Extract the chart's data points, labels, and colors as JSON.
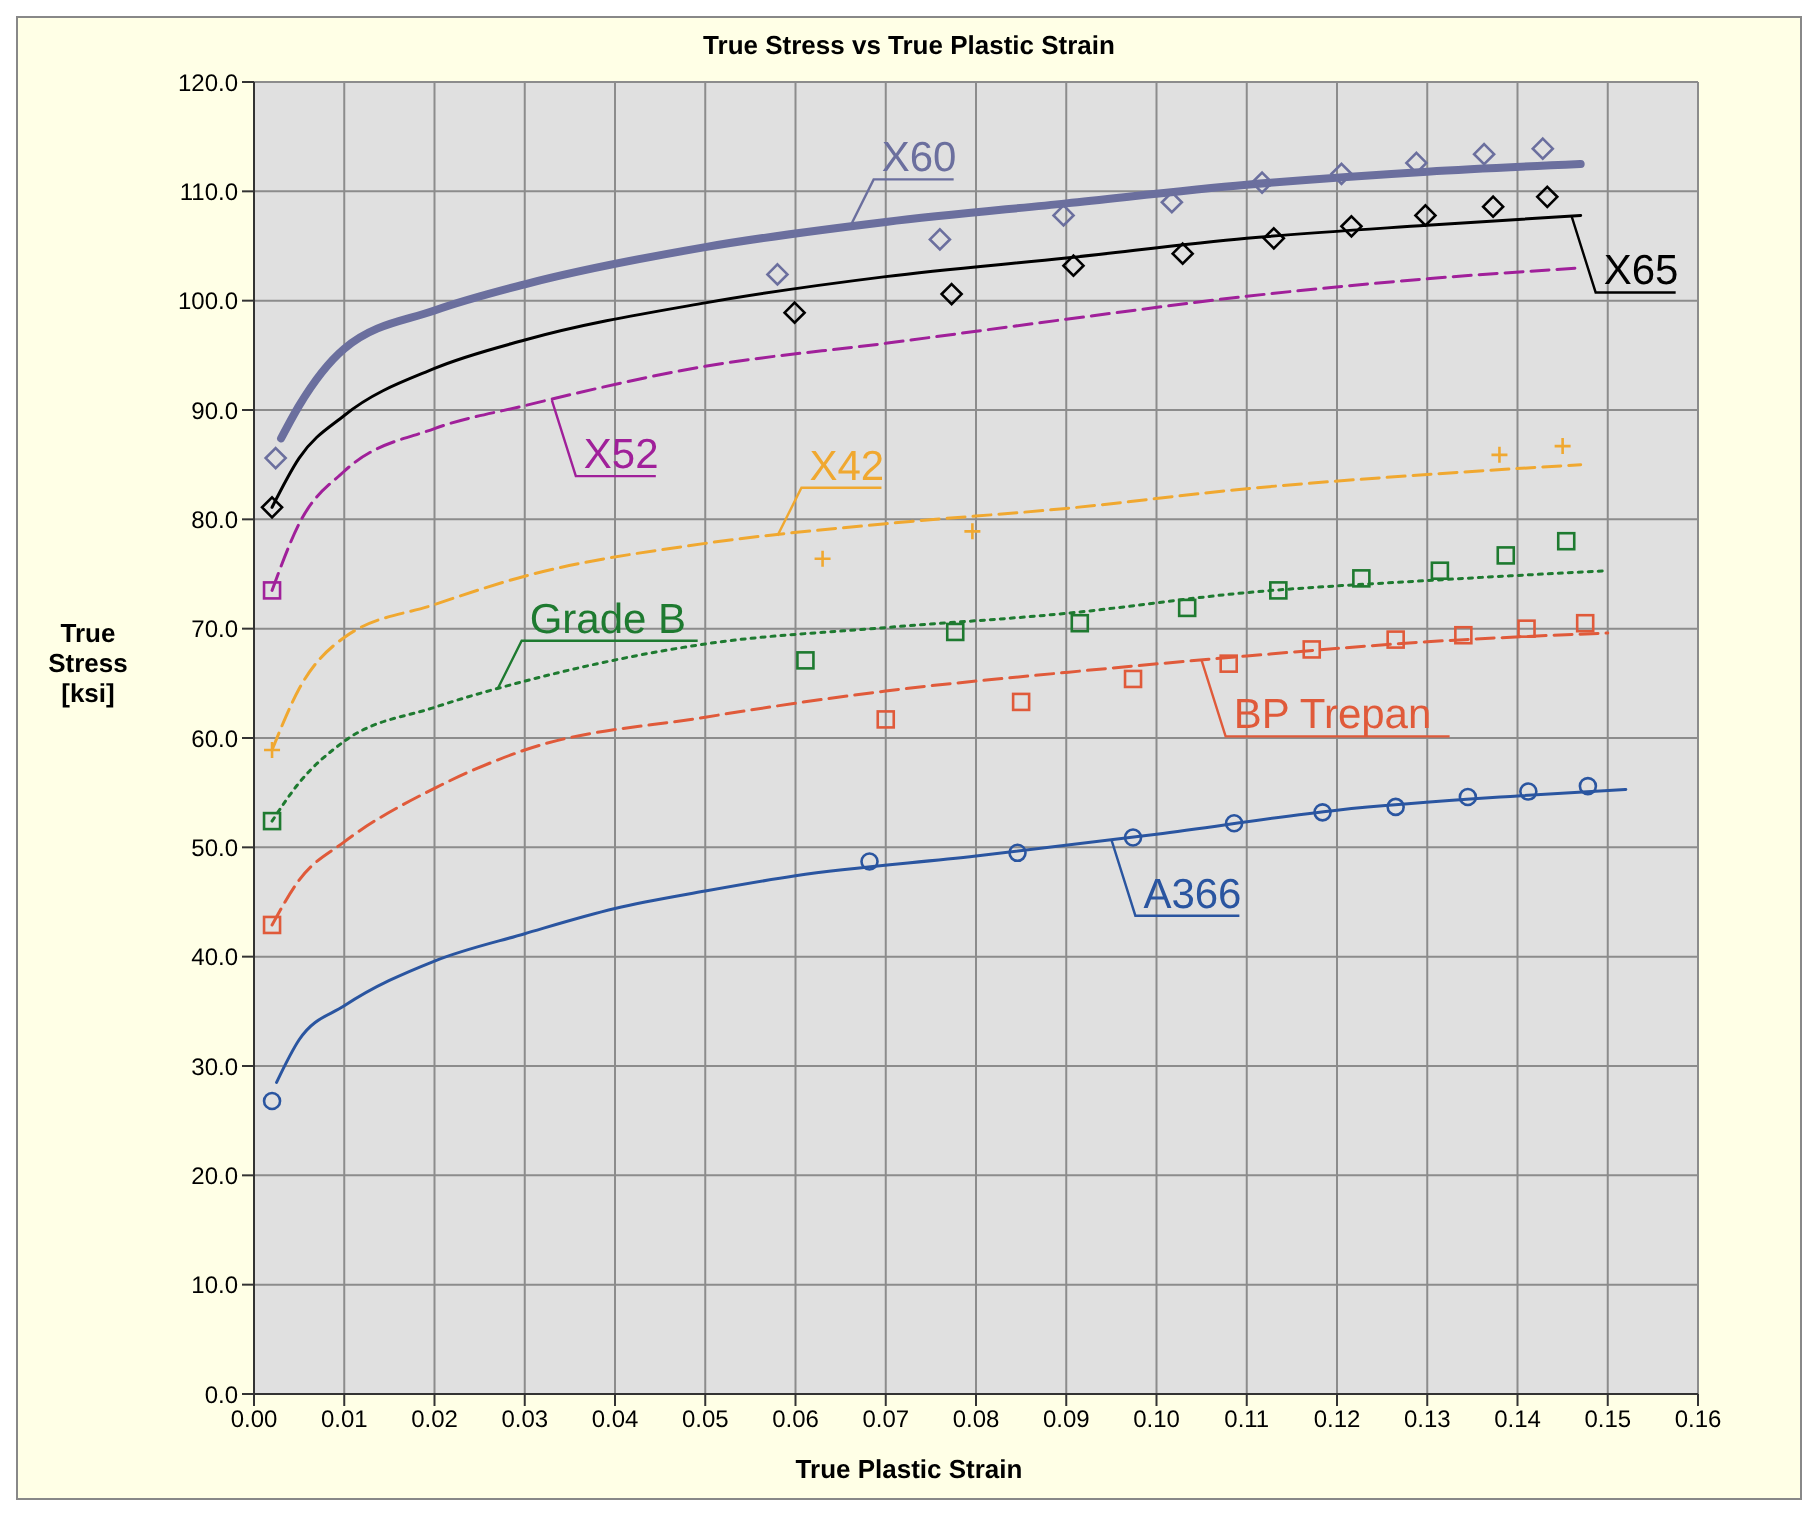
{
  "chart_data": {
    "type": "line",
    "title": "True Stress vs True Plastic Strain",
    "xlabel": "True Plastic Strain",
    "ylabel": "True Stress [ksi]",
    "xlim": [
      0,
      0.16
    ],
    "ylim": [
      0,
      120
    ],
    "xticks": [
      {
        "value": 0,
        "label": "0.00"
      },
      {
        "value": 0.01,
        "label": "0.01"
      },
      {
        "value": 0.02,
        "label": "0.02"
      },
      {
        "value": 0.03,
        "label": "0.03"
      },
      {
        "value": 0.04,
        "label": "0.04"
      },
      {
        "value": 0.05,
        "label": "0.05"
      },
      {
        "value": 0.06,
        "label": "0.06"
      },
      {
        "value": 0.07,
        "label": "0.07"
      },
      {
        "value": 0.08,
        "label": "0.08"
      },
      {
        "value": 0.09,
        "label": "0.09"
      },
      {
        "value": 0.1,
        "label": "0.10"
      },
      {
        "value": 0.11,
        "label": "0.11"
      },
      {
        "value": 0.12,
        "label": "0.12"
      },
      {
        "value": 0.13,
        "label": "0.13"
      },
      {
        "value": 0.14,
        "label": "0.14"
      },
      {
        "value": 0.15,
        "label": "0.15"
      },
      {
        "value": 0.16,
        "label": "0.16"
      }
    ],
    "yticks": [
      {
        "value": 0,
        "label": "0.0"
      },
      {
        "value": 10,
        "label": "10.0"
      },
      {
        "value": 20,
        "label": "20.0"
      },
      {
        "value": 30,
        "label": "30.0"
      },
      {
        "value": 40,
        "label": "40.0"
      },
      {
        "value": 50,
        "label": "50.0"
      },
      {
        "value": 60,
        "label": "60.0"
      },
      {
        "value": 70,
        "label": "70.0"
      },
      {
        "value": 80,
        "label": "80.0"
      },
      {
        "value": 90,
        "label": "90.0"
      },
      {
        "value": 100,
        "label": "100.0"
      },
      {
        "value": 110,
        "label": "110.0"
      },
      {
        "value": 120,
        "label": "120.0"
      }
    ],
    "grid": true,
    "series": [
      {
        "color": "#6b6f9e",
        "line_style": "solid",
        "marker": "none",
        "x": [
          0.003,
          0.005,
          0.01,
          0.02,
          0.03,
          0.05,
          0.07,
          0.09,
          0.11,
          0.13,
          0.147
        ],
        "values": [
          87.4,
          90.4,
          95.6,
          99.1,
          101.5,
          104.9,
          107.2,
          108.9,
          110.6,
          111.8,
          112.5
        ]
      },
      {
        "color": "#000000",
        "line_style": "solid",
        "marker": "none",
        "x": [
          0.002,
          0.005,
          0.01,
          0.02,
          0.03,
          0.05,
          0.07,
          0.09,
          0.11,
          0.13,
          0.147
        ],
        "values": [
          81.1,
          85.6,
          89.5,
          93.8,
          96.4,
          99.8,
          102.2,
          103.9,
          105.7,
          106.9,
          107.8
        ]
      },
      {
        "color": "#a0209a",
        "line_style": "dashed",
        "marker": "none",
        "x": [
          0.002,
          0.005,
          0.01,
          0.02,
          0.03,
          0.05,
          0.07,
          0.09,
          0.11,
          0.13,
          0.147
        ],
        "values": [
          73.5,
          79.6,
          84.4,
          88.3,
          90.4,
          94,
          96.1,
          98.3,
          100.4,
          102,
          103
        ]
      },
      {
        "color": "#f0a830",
        "line_style": "dashed",
        "marker": "none",
        "x": [
          0.002,
          0.005,
          0.01,
          0.02,
          0.03,
          0.05,
          0.07,
          0.09,
          0.11,
          0.13,
          0.147
        ],
        "values": [
          58.9,
          64.5,
          69.2,
          72.2,
          74.8,
          77.8,
          79.6,
          81,
          82.8,
          84.1,
          85
        ]
      },
      {
        "color": "#1e7a30",
        "line_style": "dotted",
        "marker": "none",
        "x": [
          0.002,
          0.005,
          0.01,
          0.02,
          0.03,
          0.05,
          0.07,
          0.09,
          0.11,
          0.13,
          0.15
        ],
        "values": [
          52.4,
          55.9,
          59.7,
          62.8,
          65.2,
          68.6,
          70.1,
          71.4,
          73.3,
          74.4,
          75.3
        ]
      },
      {
        "color": "#e05a3a",
        "line_style": "dashed",
        "marker": "none",
        "x": [
          0.002,
          0.005,
          0.01,
          0.02,
          0.03,
          0.05,
          0.07,
          0.09,
          0.11,
          0.13,
          0.15
        ],
        "values": [
          42.9,
          47,
          50.5,
          55.4,
          58.9,
          61.9,
          64.3,
          66,
          67.5,
          68.8,
          69.6
        ]
      },
      {
        "color": "#2a55a0",
        "line_style": "solid",
        "marker": "none",
        "x": [
          0.0025,
          0.005,
          0.01,
          0.02,
          0.03,
          0.04,
          0.05,
          0.06,
          0.08,
          0.1,
          0.12,
          0.14,
          0.152
        ],
        "values": [
          28.5,
          32.4,
          35.5,
          39.6,
          42.1,
          44.4,
          46,
          47.4,
          49.2,
          51.2,
          53.4,
          54.7,
          55.3
        ]
      },
      {
        "type": "scatter",
        "color": "#6b6f9e",
        "marker": "diamond",
        "x": [
          0.0024,
          0.058,
          0.076,
          0.0897,
          0.1017,
          0.1117,
          0.1205,
          0.1288,
          0.1363,
          0.1428
        ],
        "values": [
          85.6,
          102.4,
          105.6,
          107.8,
          109,
          110.8,
          111.6,
          112.6,
          113.4,
          113.9
        ]
      },
      {
        "type": "scatter",
        "color": "#000000",
        "marker": "diamond",
        "x": [
          0.002,
          0.0599,
          0.0773,
          0.0908,
          0.1029,
          0.113,
          0.1216,
          0.1298,
          0.1373,
          0.1433
        ],
        "values": [
          81.1,
          98.9,
          100.6,
          103.2,
          104.3,
          105.7,
          106.8,
          107.8,
          108.6,
          109.5
        ]
      },
      {
        "type": "scatter",
        "color": "#a0209a",
        "marker": "square",
        "x": [
          0.002
        ],
        "values": [
          73.5
        ]
      },
      {
        "type": "scatter",
        "color": "#f0a830",
        "marker": "cross",
        "x": [
          0.002,
          0.063,
          0.0796,
          0.138,
          0.145
        ],
        "values": [
          58.9,
          76.4,
          78.9,
          85.9,
          86.7
        ]
      },
      {
        "type": "scatter",
        "color": "#1e7a30",
        "marker": "square",
        "x": [
          0.002,
          0.0611,
          0.0777,
          0.0915,
          0.1034,
          0.1135,
          0.1227,
          0.1314,
          0.1387,
          0.1454
        ],
        "values": [
          52.4,
          67.1,
          69.7,
          70.5,
          71.9,
          73.5,
          74.6,
          75.3,
          76.7,
          78
        ]
      },
      {
        "type": "scatter",
        "color": "#e05a3a",
        "marker": "square",
        "x": [
          0.002,
          0.07,
          0.085,
          0.0974,
          0.108,
          0.1172,
          0.1265,
          0.134,
          0.141,
          0.1475
        ],
        "values": [
          42.9,
          61.7,
          63.3,
          65.4,
          66.8,
          68.1,
          69,
          69.4,
          70,
          70.5
        ]
      },
      {
        "type": "scatter",
        "color": "#2a55a0",
        "marker": "circle",
        "x": [
          0.002,
          0.0682,
          0.0846,
          0.0974,
          0.1086,
          0.1184,
          0.1265,
          0.1345,
          0.1412,
          0.1478
        ],
        "values": [
          26.8,
          48.7,
          49.5,
          50.9,
          52.2,
          53.2,
          53.7,
          54.6,
          55.1,
          55.6
        ]
      }
    ],
    "annotations": [
      {
        "text": "X60",
        "x": 0.066,
        "y": 106.7
      },
      {
        "text": "X65",
        "x": 0.146,
        "y": 107.7
      },
      {
        "text": "X52",
        "x": 0.033,
        "y": 90.9
      },
      {
        "text": "X42",
        "x": 0.058,
        "y": 78.5
      },
      {
        "text": "Grade B",
        "x": 0.027,
        "y": 64.5
      },
      {
        "text": "BP Trepan",
        "x": 0.105,
        "y": 67.1
      },
      {
        "text": "A366",
        "x": 0.095,
        "y": 50.7
      }
    ]
  }
}
